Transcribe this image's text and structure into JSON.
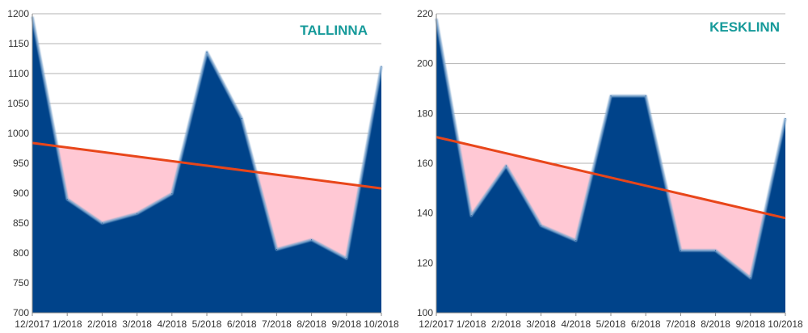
{
  "chart_data": [
    {
      "type": "area",
      "title": "TALLINNA",
      "categories": [
        "12/2017",
        "1/2018",
        "2/2018",
        "3/2018",
        "4/2018",
        "5/2018",
        "6/2018",
        "7/2018",
        "8/2018",
        "9/2018",
        "10/2018"
      ],
      "series": [
        {
          "values": [
            1195,
            890,
            850,
            866,
            899,
            1136,
            1025,
            806,
            822,
            791,
            1112
          ]
        }
      ],
      "trendline": {
        "start": 984,
        "end": 908
      },
      "ylim": [
        700,
        1200
      ],
      "yticks": [
        700,
        750,
        800,
        850,
        900,
        950,
        1000,
        1050,
        1100,
        1150,
        1200
      ],
      "xlabel": "",
      "ylabel": "",
      "grid": true,
      "colors": {
        "area": "#00438a",
        "area_edge": "#7fa7cf",
        "trend": "#e8461a",
        "below_trend": "#ffc8d4",
        "title": "#169a9a"
      }
    },
    {
      "type": "area",
      "title": "KESKLINN",
      "categories": [
        "12/2017",
        "1/2018",
        "2/2018",
        "3/2018",
        "4/2018",
        "5/2018",
        "6/2018",
        "7/2018",
        "8/2018",
        "9/2018",
        "10/2018"
      ],
      "series": [
        {
          "values": [
            218,
            139,
            159,
            135,
            129,
            187,
            187,
            125,
            125,
            114,
            178
          ]
        }
      ],
      "trendline": {
        "start": 170.5,
        "end": 138
      },
      "ylim": [
        100,
        220
      ],
      "yticks": [
        100,
        120,
        140,
        160,
        180,
        200,
        220
      ],
      "xlabel": "",
      "ylabel": "",
      "grid": true,
      "colors": {
        "area": "#00438a",
        "area_edge": "#7fa7cf",
        "trend": "#e8461a",
        "below_trend": "#ffc8d4",
        "title": "#169a9a"
      }
    }
  ]
}
